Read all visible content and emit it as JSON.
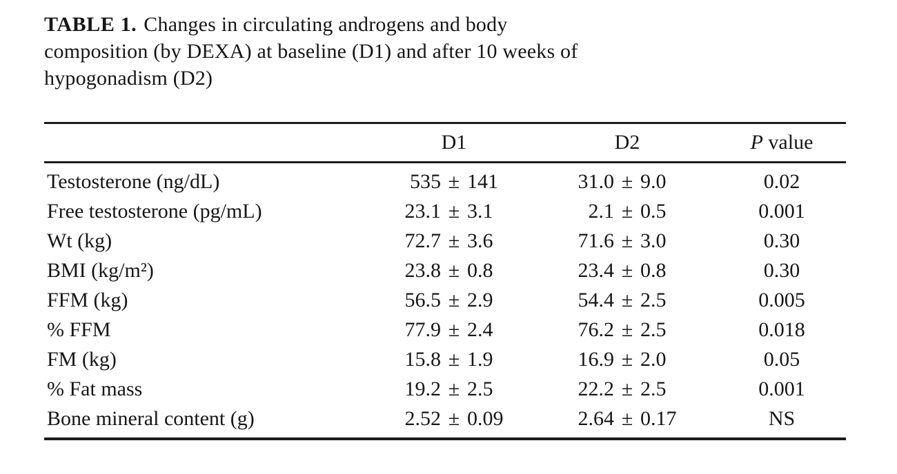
{
  "caption": {
    "label": "TABLE 1.",
    "lines": [
      "Changes in circulating androgens and body",
      "composition (by DEXA) at baseline (D1) and after 10 weeks of",
      "hypogonadism (D2)"
    ]
  },
  "table": {
    "header": {
      "label_col": "",
      "d1": "D1",
      "d2": "D2",
      "p_italic": "P",
      "p_rest": "value"
    },
    "rows": [
      {
        "label": "Testosterone (ng/dL)",
        "d1": "535 ± 141",
        "d2": "31.0 ± 9.0",
        "p": "0.02"
      },
      {
        "label": "Free testosterone (pg/mL)",
        "d1": "23.1 ± 3.1",
        "d2": "2.1 ± 0.5",
        "p": "0.001"
      },
      {
        "label": "Wt (kg)",
        "d1": "72.7 ± 3.6",
        "d2": "71.6 ± 3.0",
        "p": "0.30"
      },
      {
        "label": "BMI (kg/m²)",
        "d1": "23.8 ± 0.8",
        "d2": "23.4 ± 0.8",
        "p": "0.30"
      },
      {
        "label": "FFM (kg)",
        "d1": "56.5 ± 2.9",
        "d2": "54.4 ± 2.5",
        "p": "0.005"
      },
      {
        "label": "% FFM",
        "d1": "77.9 ± 2.4",
        "d2": "76.2 ± 2.5",
        "p": "0.018"
      },
      {
        "label": "FM (kg)",
        "d1": "15.8 ± 1.9",
        "d2": "16.9 ± 2.0",
        "p": "0.05"
      },
      {
        "label": "% Fat mass",
        "d1": "19.2 ± 2.5",
        "d2": "22.2 ± 2.5",
        "p": "0.001"
      },
      {
        "label": "Bone mineral content (g)",
        "d1": "2.52 ± 0.09",
        "d2": "2.64 ± 0.17",
        "p": "NS"
      }
    ]
  },
  "colors": {
    "background": "#ffffff",
    "text": "#161616",
    "rule": "#1b1b1b"
  }
}
